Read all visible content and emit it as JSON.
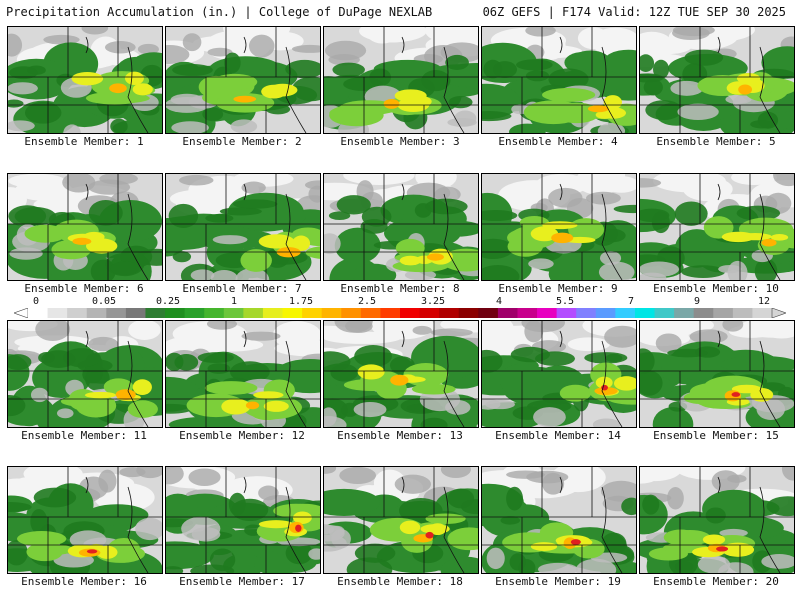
{
  "header": {
    "title": "Precipitation Accumulation (in.) | College of DuPage NEXLAB",
    "run_info": "06Z GEFS | F174 Valid: 12Z TUE SEP 30 2025"
  },
  "panels": [
    {
      "label": "Ensemble Member: 1"
    },
    {
      "label": "Ensemble Member: 2"
    },
    {
      "label": "Ensemble Member: 3"
    },
    {
      "label": "Ensemble Member: 4"
    },
    {
      "label": "Ensemble Member: 5"
    },
    {
      "label": "Ensemble Member: 6"
    },
    {
      "label": "Ensemble Member: 7"
    },
    {
      "label": "Ensemble Member: 8"
    },
    {
      "label": "Ensemble Member: 9"
    },
    {
      "label": "Ensemble Member: 10"
    },
    {
      "label": "Ensemble Member: 11"
    },
    {
      "label": "Ensemble Member: 12"
    },
    {
      "label": "Ensemble Member: 13"
    },
    {
      "label": "Ensemble Member: 14"
    },
    {
      "label": "Ensemble Member: 15"
    },
    {
      "label": "Ensemble Member: 16"
    },
    {
      "label": "Ensemble Member: 17"
    },
    {
      "label": "Ensemble Member: 18"
    },
    {
      "label": "Ensemble Member: 19"
    },
    {
      "label": "Ensemble Member: 20"
    }
  ],
  "colorbar": {
    "tick_labels": [
      "0",
      "0.05",
      "0.25",
      "1",
      "1.75",
      "2.5",
      "3.25",
      "4",
      "5.5",
      "7",
      "9",
      "12"
    ],
    "colors": [
      "#ffffff",
      "#e6e6e6",
      "#cfcfcf",
      "#b4b4b4",
      "#969696",
      "#787878",
      "#2e7d32",
      "#1f8f1f",
      "#2aa12a",
      "#45b52d",
      "#6cc63a",
      "#a6d72a",
      "#e6ee1e",
      "#f7f600",
      "#ffd200",
      "#ffb400",
      "#ff9100",
      "#ff6a00",
      "#ff3c00",
      "#f00000",
      "#d40000",
      "#b00000",
      "#8b0000",
      "#700010",
      "#a0006a",
      "#c8008c",
      "#e800c0",
      "#b34dff",
      "#8080ff",
      "#5b9bff",
      "#33ccff",
      "#00e5e5",
      "#40c8c8",
      "#7aa7a7",
      "#8c8c8c",
      "#a5a5a5",
      "#bdbdbd",
      "#d5d5d5"
    ]
  }
}
